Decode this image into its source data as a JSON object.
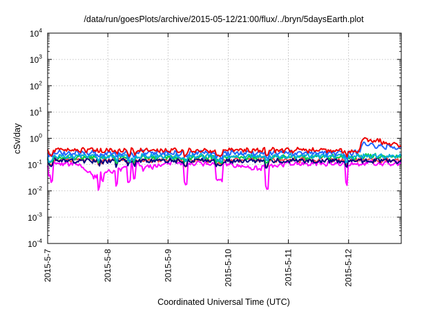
{
  "chart_data": {
    "type": "line",
    "title": "/data/run/goesPlots/archive/2015-05-12/21:00/flux/../bryn/5daysEarth.plot",
    "xlabel": "Coordinated Universal Time (UTC)",
    "ylabel": "cSv/day",
    "yscale": "log",
    "ylim": [
      0.0001,
      10000
    ],
    "xlim": [
      "2015-05-07 00:00",
      "2015-05-12 21:00"
    ],
    "grid": true,
    "x_ticks": [
      "2015-5-7",
      "2015-5-8",
      "2015-5-9",
      "2015-5-10",
      "2015-5-11",
      "2015-5-12"
    ],
    "y_ticks": [
      {
        "base": "10",
        "exp": "4",
        "value": 10000
      },
      {
        "base": "10",
        "exp": "3",
        "value": 1000
      },
      {
        "base": "10",
        "exp": "2",
        "value": 100
      },
      {
        "base": "10",
        "exp": "1",
        "value": 10
      },
      {
        "base": "10",
        "exp": "0",
        "value": 1
      },
      {
        "base": "10",
        "exp": "-1",
        "value": 0.1
      },
      {
        "base": "10",
        "exp": "-2",
        "value": 0.01
      },
      {
        "base": "10",
        "exp": "-3",
        "value": 0.001
      },
      {
        "base": "10",
        "exp": "-4",
        "value": 0.0001
      }
    ],
    "series": [
      {
        "color": "#ff00ff",
        "points": [
          [
            "2015-05-07 00:00",
            0.11
          ],
          [
            "2015-05-07 12:00",
            0.11
          ],
          [
            "2015-05-07 18:00",
            0.035
          ],
          [
            "2015-05-08 12:00",
            0.11
          ],
          [
            "2015-05-08 14:00",
            0.07
          ],
          [
            "2015-05-09 00:00",
            0.11
          ],
          [
            "2015-05-10 00:00",
            0.11
          ],
          [
            "2015-05-10 12:00",
            0.07
          ],
          [
            "2015-05-11 00:00",
            0.11
          ],
          [
            "2015-05-12 00:00",
            0.11
          ],
          [
            "2015-05-12 21:00",
            0.11
          ]
        ]
      },
      {
        "color": "#ff4444",
        "points": [
          [
            "2015-05-07 00:00",
            0.15
          ],
          [
            "2015-05-08 00:00",
            0.15
          ],
          [
            "2015-05-09 00:00",
            0.15
          ],
          [
            "2015-05-10 00:00",
            0.15
          ],
          [
            "2015-05-11 00:00",
            0.15
          ],
          [
            "2015-05-12 00:00",
            0.15
          ],
          [
            "2015-05-12 21:00",
            0.15
          ]
        ]
      },
      {
        "color": "#000080",
        "points": [
          [
            "2015-05-07 00:00",
            0.14
          ],
          [
            "2015-05-08 00:00",
            0.14
          ],
          [
            "2015-05-09 00:00",
            0.14
          ],
          [
            "2015-05-10 00:00",
            0.14
          ],
          [
            "2015-05-11 00:00",
            0.14
          ],
          [
            "2015-05-12 00:00",
            0.14
          ],
          [
            "2015-05-12 21:00",
            0.14
          ]
        ]
      },
      {
        "color": "#00cc44",
        "points": [
          [
            "2015-05-07 00:00",
            0.19
          ],
          [
            "2015-05-08 00:00",
            0.19
          ],
          [
            "2015-05-09 00:00",
            0.19
          ],
          [
            "2015-05-10 00:00",
            0.19
          ],
          [
            "2015-05-11 00:00",
            0.19
          ],
          [
            "2015-05-12 04:00",
            0.19
          ],
          [
            "2015-05-12 06:00",
            0.22
          ],
          [
            "2015-05-12 21:00",
            0.21
          ]
        ]
      },
      {
        "color": "#00aadd",
        "points": [
          [
            "2015-05-07 00:00",
            0.21
          ],
          [
            "2015-05-08 00:00",
            0.21
          ],
          [
            "2015-05-09 00:00",
            0.21
          ],
          [
            "2015-05-10 00:00",
            0.21
          ],
          [
            "2015-05-11 00:00",
            0.21
          ],
          [
            "2015-05-12 00:00",
            0.21
          ],
          [
            "2015-05-12 21:00",
            0.21
          ]
        ]
      },
      {
        "color": "#2266ff",
        "points": [
          [
            "2015-05-07 00:00",
            0.28
          ],
          [
            "2015-05-08 00:00",
            0.28
          ],
          [
            "2015-05-09 00:00",
            0.28
          ],
          [
            "2015-05-10 00:00",
            0.28
          ],
          [
            "2015-05-11 00:00",
            0.28
          ],
          [
            "2015-05-12 04:00",
            0.28
          ],
          [
            "2015-05-12 06:00",
            0.6
          ],
          [
            "2015-05-12 21:00",
            0.4
          ]
        ]
      },
      {
        "color": "#ee0000",
        "points": [
          [
            "2015-05-07 00:00",
            0.35
          ],
          [
            "2015-05-08 00:00",
            0.35
          ],
          [
            "2015-05-09 00:00",
            0.35
          ],
          [
            "2015-05-10 00:00",
            0.35
          ],
          [
            "2015-05-11 00:00",
            0.35
          ],
          [
            "2015-05-12 04:00",
            0.35
          ],
          [
            "2015-05-12 06:00",
            0.95
          ],
          [
            "2015-05-12 21:00",
            0.55
          ]
        ]
      }
    ]
  }
}
